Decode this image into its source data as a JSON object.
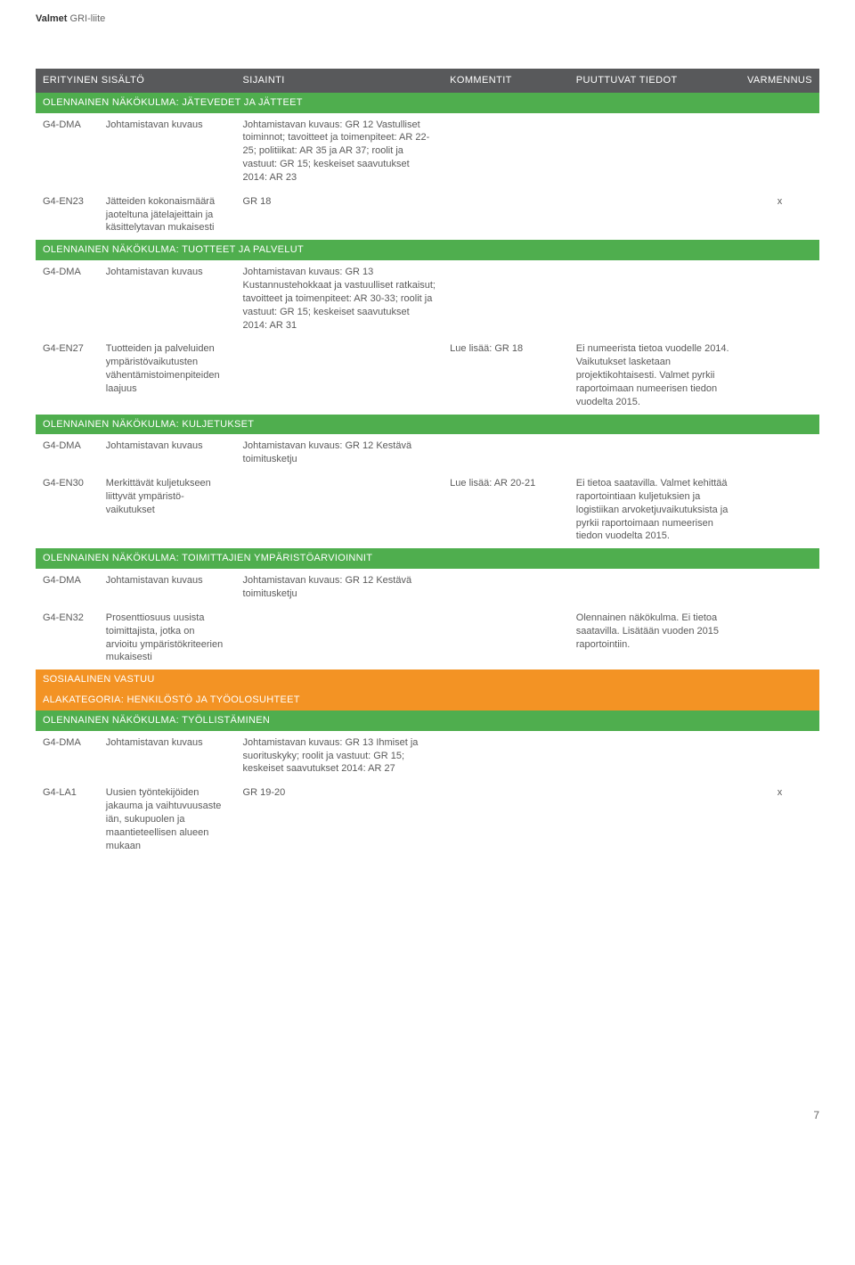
{
  "header": {
    "brand": "Valmet",
    "suffix": "GRI-liite"
  },
  "columns": {
    "c1": "ERITYINEN SISÄLTÖ",
    "c2": "SIJAINTI",
    "c3": "KOMMENTIT",
    "c4": "PUUTTUVAT TIEDOT",
    "c5": "VARMENNUS"
  },
  "sections": {
    "jatevedet": "OLENNAINEN NÄKÖKULMA: JÄTEVEDET JA JÄTTEET",
    "tuotteet": "OLENNAINEN NÄKÖKULMA: TUOTTEET JA PALVELUT",
    "kuljetukset": "OLENNAINEN NÄKÖKULMA: KULJETUKSET",
    "toimittajien": "OLENNAINEN NÄKÖKULMA: TOIMITTAJIEN YMPÄRISTÖARVIOINNIT",
    "sosiaalinen": "SOSIAALINEN VASTUU",
    "alakategoria": "ALAKATEGORIA: HENKILÖSTÖ JA TYÖOLOSUHTEET",
    "tyollistaminen": "OLENNAINEN NÄKÖKULMA: TYÖLLISTÄMINEN"
  },
  "rows": {
    "r1": {
      "code": "G4-DMA",
      "title": "Johtamistavan kuvaus",
      "sijainti": "Johtamistavan kuvaus: GR 12 Vastulliset toiminnot; tavoitteet ja toimenpiteet: AR 22-25; politiikat: AR 35 ja AR 37; roolit ja vastuut: GR 15; keskeiset saavutukset 2014: AR 23"
    },
    "r2": {
      "code": "G4-EN23",
      "title": "Jätteiden kokonais­määrä jaoteltuna jäte­lajeittain ja käsittely­tavan mukaisesti",
      "sijainti": "GR 18",
      "varmennus": "x"
    },
    "r3": {
      "code": "G4-DMA",
      "title": "Johtamistavan kuvaus",
      "sijainti": "Johtamistavan kuvaus: GR 13 Kustannustehokkaat ja vas­tuulliset ratkaisut; tavoitteet ja toimenpiteet: AR 30-33; roolit ja vastuut: GR 15; keskeiset saavu­tukset 2014: AR 31"
    },
    "r4": {
      "code": "G4-EN27",
      "title": "Tuotteiden ja palvelui­den ympäristövaikutus­ten vähentämistoimen­piteiden laajuus",
      "kommentit": "Lue lisää: GR 18",
      "puuttuvat": "Ei numeerista tietoa vuo­delle 2014. Vaikutukset las­ketaan projektikohtaisesti. Valmet pyrkii raportoimaan numeerisen tiedon vuodelta 2015."
    },
    "r5": {
      "code": "G4-DMA",
      "title": "Johtamistavan kuvaus",
      "sijainti": "Johtamistavan kuvaus: GR 12 Kestävä toimitusketju"
    },
    "r6": {
      "code": "G4-EN30",
      "title": "Merkittävät kuljetukseen liittyvät ympäristö­vaikutukset",
      "kommentit": "Lue lisää: AR 20-21",
      "puuttuvat": "Ei tietoa saatavilla. Valmet kehittää raportointiaan kul­jetuksien ja logistiikan arvo­ketjuvaikutuksista ja pyrkii raportoimaan numeerisen tiedon vuodelta 2015."
    },
    "r7": {
      "code": "G4-DMA",
      "title": "Johtamistavan kuvaus",
      "sijainti": "Johtamistavan kuvaus: GR 12 Kestävä toimitusketju"
    },
    "r8": {
      "code": "G4-EN32",
      "title": "Prosenttiosuus uusista toimittajista, jotka on arvioitu ympäristö­kriteerien mukaisesti",
      "puuttuvat": "Olennainen näkökulma. Ei tietoa saatavilla. Lisätään vuoden 2015 raportointiin."
    },
    "r9": {
      "code": "G4-DMA",
      "title": "Johtamistavan kuvaus",
      "sijainti": "Johtamistavan kuvaus: GR 13 Ihmiset ja suorituskyky; roolit ja vastuut: GR 15; keskeiset saavu­tukset 2014: AR 27"
    },
    "r10": {
      "code": "G4-LA1",
      "title": "Uusien työntekijöiden jakauma ja vaihtuvuus­aste iän, sukupuolen ja maantieteellisen alueen mukaan",
      "sijainti": "GR 19-20",
      "varmennus": "x"
    }
  },
  "pageNumber": "7"
}
